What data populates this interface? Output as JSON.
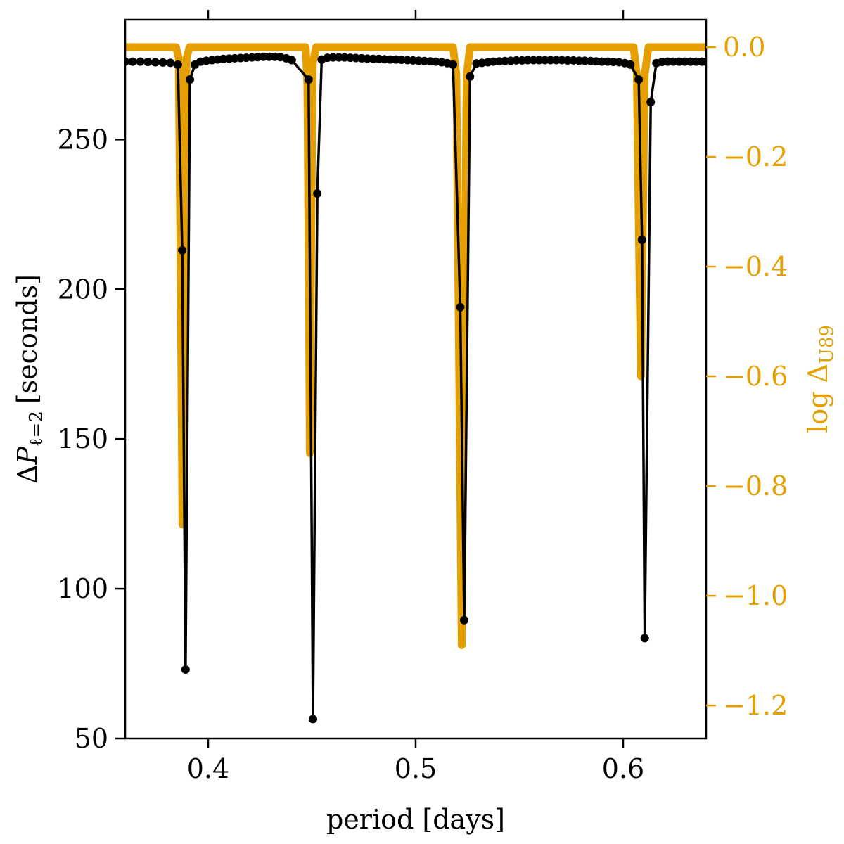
{
  "chart_data": {
    "type": "line",
    "xlabel": "period [days]",
    "ylabel_left": {
      "delta": "Δ",
      "symbol": "P",
      "subscript": "ℓ=2",
      "unit": "[seconds]"
    },
    "ylabel_right": {
      "prefix": "log Δ",
      "subscript": "U89"
    },
    "xlim": [
      0.36,
      0.64
    ],
    "ylim_left": [
      50,
      290
    ],
    "ylim_right": [
      -1.26,
      0.05
    ],
    "x_ticks": [
      "0.4",
      "0.5",
      "0.6"
    ],
    "x_tick_values": [
      0.4,
      0.5,
      0.6
    ],
    "left_ticks": [
      "50",
      "100",
      "150",
      "200",
      "250"
    ],
    "left_tick_values": [
      50,
      100,
      150,
      200,
      250
    ],
    "right_ticks": [
      "0.0",
      "−0.2",
      "−0.4",
      "−0.6",
      "−0.8",
      "−1.0",
      "−1.2"
    ],
    "right_tick_values": [
      0.0,
      -0.2,
      -0.4,
      -0.6,
      -0.8,
      -1.0,
      -1.2
    ],
    "colors": {
      "period_spacing": "#000000",
      "log_delta": "#e69f00"
    },
    "series": [
      {
        "axis": "left",
        "marker": "dot",
        "points": [
          [
            0.36,
            276.0
          ],
          [
            0.3636,
            276.0
          ],
          [
            0.3673,
            276.0
          ],
          [
            0.3709,
            275.9
          ],
          [
            0.3745,
            275.8
          ],
          [
            0.3782,
            275.7
          ],
          [
            0.3818,
            275.6
          ],
          [
            0.3854,
            275.0
          ],
          [
            0.3875,
            213.0
          ],
          [
            0.3891,
            73.0
          ],
          [
            0.3912,
            270.0
          ],
          [
            0.3936,
            275.0
          ],
          [
            0.3963,
            276.0
          ],
          [
            0.3991,
            276.3
          ],
          [
            0.4018,
            276.5
          ],
          [
            0.4046,
            276.7
          ],
          [
            0.4073,
            276.9
          ],
          [
            0.4101,
            277.0
          ],
          [
            0.4128,
            277.1
          ],
          [
            0.4156,
            277.2
          ],
          [
            0.4183,
            277.3
          ],
          [
            0.4211,
            277.4
          ],
          [
            0.4238,
            277.5
          ],
          [
            0.4266,
            277.6
          ],
          [
            0.4293,
            277.6
          ],
          [
            0.4321,
            277.6
          ],
          [
            0.4348,
            277.5
          ],
          [
            0.4376,
            277.1
          ],
          [
            0.4403,
            276.5
          ],
          [
            0.4484,
            270.0
          ],
          [
            0.4505,
            56.5
          ],
          [
            0.4526,
            232.0
          ],
          [
            0.4547,
            276.7
          ],
          [
            0.4575,
            277.3
          ],
          [
            0.4602,
            277.4
          ],
          [
            0.463,
            277.4
          ],
          [
            0.4657,
            277.4
          ],
          [
            0.4685,
            277.3
          ],
          [
            0.4712,
            277.2
          ],
          [
            0.474,
            277.1
          ],
          [
            0.4767,
            277.0
          ],
          [
            0.4795,
            276.9
          ],
          [
            0.4822,
            276.9
          ],
          [
            0.485,
            276.8
          ],
          [
            0.4877,
            276.7
          ],
          [
            0.4905,
            276.7
          ],
          [
            0.4932,
            276.6
          ],
          [
            0.496,
            276.5
          ],
          [
            0.4987,
            276.4
          ],
          [
            0.5015,
            276.3
          ],
          [
            0.5042,
            276.2
          ],
          [
            0.507,
            276.1
          ],
          [
            0.5097,
            276.0
          ],
          [
            0.5125,
            275.8
          ],
          [
            0.5152,
            275.5
          ],
          [
            0.518,
            275.0
          ],
          [
            0.5215,
            194.0
          ],
          [
            0.5234,
            89.5
          ],
          [
            0.5262,
            271.0
          ],
          [
            0.5293,
            275.4
          ],
          [
            0.532,
            275.6
          ],
          [
            0.5348,
            275.8
          ],
          [
            0.5375,
            276.0
          ],
          [
            0.5403,
            276.1
          ],
          [
            0.543,
            276.2
          ],
          [
            0.5458,
            276.3
          ],
          [
            0.5485,
            276.4
          ],
          [
            0.5513,
            276.4
          ],
          [
            0.554,
            276.5
          ],
          [
            0.5568,
            276.5
          ],
          [
            0.5595,
            276.5
          ],
          [
            0.5623,
            276.5
          ],
          [
            0.565,
            276.5
          ],
          [
            0.5678,
            276.5
          ],
          [
            0.5705,
            276.5
          ],
          [
            0.5733,
            276.4
          ],
          [
            0.576,
            276.4
          ],
          [
            0.5788,
            276.3
          ],
          [
            0.5815,
            276.3
          ],
          [
            0.5843,
            276.2
          ],
          [
            0.587,
            276.1
          ],
          [
            0.5898,
            276.0
          ],
          [
            0.5925,
            276.0
          ],
          [
            0.5953,
            275.9
          ],
          [
            0.598,
            275.8
          ],
          [
            0.6008,
            275.5
          ],
          [
            0.6035,
            275.0
          ],
          [
            0.6075,
            270.0
          ],
          [
            0.6091,
            216.5
          ],
          [
            0.6104,
            83.5
          ],
          [
            0.6133,
            262.5
          ],
          [
            0.616,
            275.5
          ],
          [
            0.6187,
            275.9
          ],
          [
            0.6215,
            276.0
          ],
          [
            0.6242,
            276.0
          ],
          [
            0.627,
            276.0
          ],
          [
            0.6297,
            276.0
          ],
          [
            0.6325,
            276.0
          ],
          [
            0.6352,
            276.0
          ],
          [
            0.638,
            276.0
          ],
          [
            0.64,
            276.0
          ]
        ]
      },
      {
        "axis": "right",
        "marker": "none",
        "points": [
          [
            0.36,
            0.0
          ],
          [
            0.3845,
            0.0
          ],
          [
            0.3858,
            -0.02
          ],
          [
            0.3868,
            -0.45
          ],
          [
            0.3876,
            -0.87
          ],
          [
            0.3886,
            -0.4
          ],
          [
            0.3896,
            -0.02
          ],
          [
            0.391,
            0.0
          ],
          [
            0.447,
            0.0
          ],
          [
            0.4478,
            -0.07
          ],
          [
            0.4484,
            -0.38
          ],
          [
            0.449,
            -0.74
          ],
          [
            0.4496,
            -0.38
          ],
          [
            0.4504,
            -0.03
          ],
          [
            0.452,
            0.0
          ],
          [
            0.518,
            0.0
          ],
          [
            0.5196,
            -0.05
          ],
          [
            0.521,
            -0.6
          ],
          [
            0.5222,
            -1.09
          ],
          [
            0.5232,
            -0.6
          ],
          [
            0.5246,
            -0.05
          ],
          [
            0.5262,
            0.0
          ],
          [
            0.605,
            0.0
          ],
          [
            0.6066,
            -0.05
          ],
          [
            0.6078,
            -0.4
          ],
          [
            0.6086,
            -0.6
          ],
          [
            0.6094,
            -0.35
          ],
          [
            0.6104,
            -0.05
          ],
          [
            0.6122,
            0.0
          ],
          [
            0.64,
            0.0
          ]
        ]
      }
    ]
  }
}
